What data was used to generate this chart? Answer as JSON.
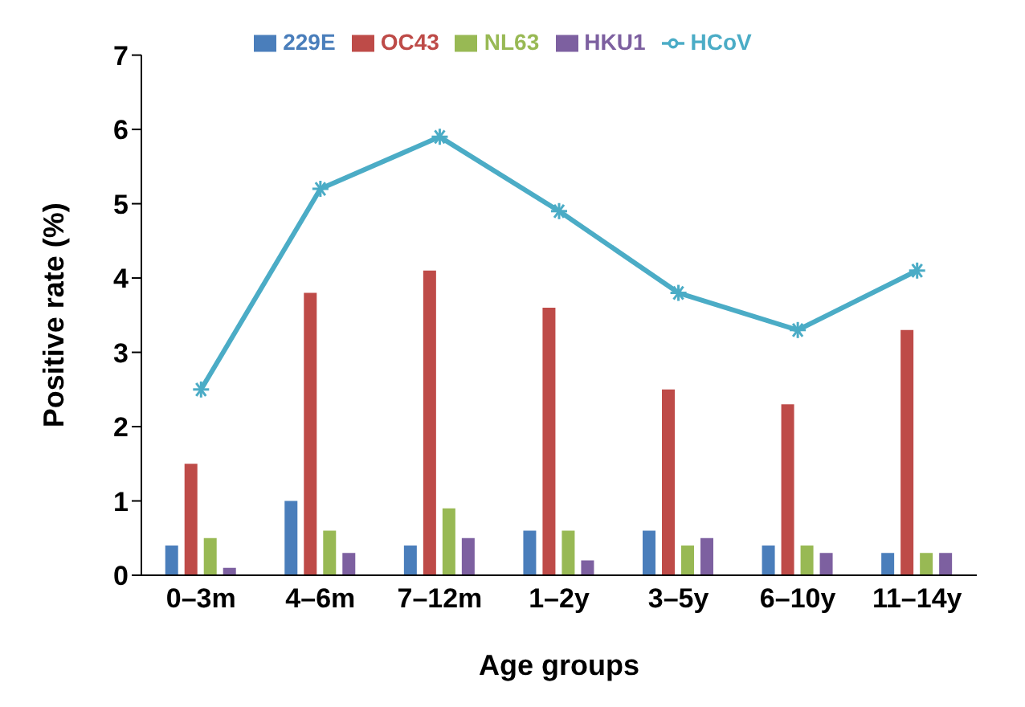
{
  "chart_data": {
    "type": "bar",
    "xlabel": "Age groups",
    "ylabel": "Positive rate (%)",
    "categories": [
      "0–3m",
      "4–6m",
      "7–12m",
      "1–2y",
      "3–5y",
      "6–10y",
      "11–14y"
    ],
    "series": [
      {
        "name": "229E",
        "color": "#4a7ebb",
        "values": [
          0.4,
          1.0,
          0.4,
          0.6,
          0.6,
          0.4,
          0.3
        ]
      },
      {
        "name": "OC43",
        "color": "#be4b48",
        "values": [
          1.5,
          3.8,
          4.1,
          3.6,
          2.5,
          2.3,
          3.3
        ]
      },
      {
        "name": "NL63",
        "color": "#98b954",
        "values": [
          0.5,
          0.6,
          0.9,
          0.6,
          0.4,
          0.4,
          0.3
        ]
      },
      {
        "name": "HKU1",
        "color": "#7d60a0",
        "values": [
          0.1,
          0.3,
          0.5,
          0.2,
          0.5,
          0.3,
          0.3
        ]
      },
      {
        "name": "HCoV",
        "type": "line",
        "color": "#4bacc6",
        "values": [
          2.5,
          5.2,
          5.9,
          4.9,
          3.8,
          3.3,
          4.1
        ]
      }
    ],
    "ylim": [
      0,
      7
    ],
    "yticks": [
      0,
      1,
      2,
      3,
      4,
      5,
      6,
      7
    ],
    "grid": false,
    "legend": "top",
    "marker": "cross"
  }
}
